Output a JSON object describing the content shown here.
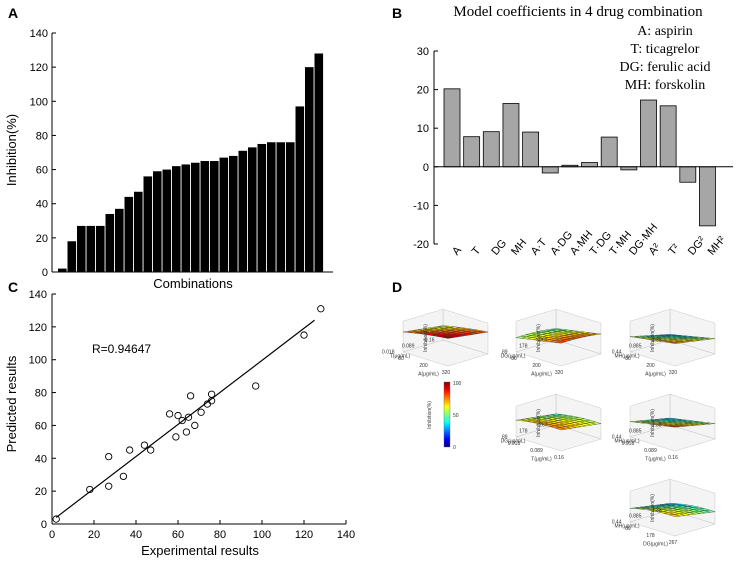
{
  "panels": {
    "A": {
      "letter": "A",
      "chart_data": {
        "type": "bar",
        "xlabel": "Combinations",
        "ylabel": "Inhibition(%)",
        "ylim": [
          0,
          140
        ],
        "yticks": [
          0,
          20,
          40,
          60,
          80,
          100,
          120,
          140
        ],
        "values": [
          2,
          18,
          27,
          27,
          27,
          34,
          37,
          44,
          47,
          56,
          59,
          60,
          62,
          63,
          64,
          65,
          65,
          67,
          68,
          71,
          73,
          75,
          76,
          76,
          76,
          97,
          120,
          128
        ]
      }
    },
    "B": {
      "letter": "B",
      "title": "Model coefficients in 4 drug combination",
      "legend": [
        "A: aspirin",
        "T: ticagrelor",
        "DG: ferulic acid",
        "MH: forskolin"
      ],
      "chart_data": {
        "type": "bar",
        "title": "Model coefficients in 4 drug combination",
        "ylim": [
          -20,
          30
        ],
        "yticks": [
          -20,
          -10,
          0,
          10,
          20,
          30
        ],
        "categories": [
          "A",
          "T",
          "DG",
          "MH",
          "A·T",
          "A·DG",
          "A·MH",
          "T·DG",
          "T·MH",
          "DG·MH",
          "A²",
          "T²",
          "DG²",
          "MH²"
        ],
        "values": [
          20.2,
          7.8,
          9.1,
          16.4,
          9.0,
          -1.6,
          0.4,
          1.1,
          7.7,
          -0.8,
          17.3,
          15.8,
          -4.0,
          -15.3
        ]
      }
    },
    "C": {
      "letter": "C",
      "annotation": "R=0.94647",
      "chart_data": {
        "type": "scatter",
        "xlabel": "Experimental results",
        "ylabel": "Predicted results",
        "xlim": [
          0,
          140
        ],
        "ylim": [
          0,
          140
        ],
        "xticks": [
          0,
          20,
          40,
          60,
          80,
          100,
          120,
          140
        ],
        "yticks": [
          0,
          20,
          40,
          60,
          80,
          100,
          120,
          140
        ],
        "points": [
          [
            2,
            3
          ],
          [
            18,
            21
          ],
          [
            27,
            23
          ],
          [
            27,
            41
          ],
          [
            34,
            29
          ],
          [
            37,
            45
          ],
          [
            44,
            48
          ],
          [
            47,
            45
          ],
          [
            56,
            67
          ],
          [
            59,
            53
          ],
          [
            60,
            66
          ],
          [
            62,
            63
          ],
          [
            64,
            56
          ],
          [
            65,
            65
          ],
          [
            66,
            78
          ],
          [
            68,
            60
          ],
          [
            71,
            68
          ],
          [
            74,
            73
          ],
          [
            76,
            79
          ],
          [
            76,
            75
          ],
          [
            97,
            84
          ],
          [
            120,
            115
          ],
          [
            128,
            131
          ]
        ],
        "fit_line": [
          [
            2,
            4
          ],
          [
            125,
            124
          ]
        ]
      }
    },
    "D": {
      "letter": "D",
      "plots": [
        {
          "zlabel": "Inhibition(%)",
          "xlabel": "A(μg/mL)",
          "ylabel": "T(μg/mL)",
          "xticks": [
            "80",
            "200",
            "320"
          ],
          "yticks": [
            "0.16",
            "0.089",
            "0.018"
          ]
        },
        {
          "zlabel": "Inhibition(%)",
          "xlabel": "A(μg/mL)",
          "ylabel": "DG(μg/mL)",
          "xticks": [
            "80",
            "200",
            "320"
          ],
          "yticks": [
            "267",
            "178",
            "89"
          ]
        },
        {
          "zlabel": "Inhibition(%)",
          "xlabel": "A(μg/mL)",
          "ylabel": "MH(μg/mL)",
          "xticks": [
            "80",
            "200",
            "320"
          ],
          "yticks": [
            "1.33",
            "0.885",
            "0.44"
          ]
        },
        {
          "zlabel": "Inhibition(%)",
          "xlabel": "T(μg/mL)",
          "ylabel": "DG(μg/mL)",
          "xticks": [
            "0.018",
            "0.089",
            "0.16"
          ],
          "yticks": [
            "267",
            "178",
            "89"
          ]
        },
        {
          "zlabel": "Inhibition(%)",
          "xlabel": "T(μg/mL)",
          "ylabel": "MH(μg/mL)",
          "xticks": [
            "0.018",
            "0.089",
            "0.16"
          ],
          "yticks": [
            "1.33",
            "0.885",
            "0.44"
          ]
        },
        {
          "zlabel": "Inhibition(%)",
          "xlabel": "DG(μg/mL)",
          "ylabel": "MH(μg/mL)",
          "xticks": [
            "89",
            "178",
            "267"
          ],
          "yticks": [
            "1.33",
            "0.885",
            "0.44"
          ]
        }
      ],
      "colorbar": {
        "label": "Inhibition(%)",
        "ticks": [
          "0",
          "50",
          "100"
        ]
      }
    }
  }
}
